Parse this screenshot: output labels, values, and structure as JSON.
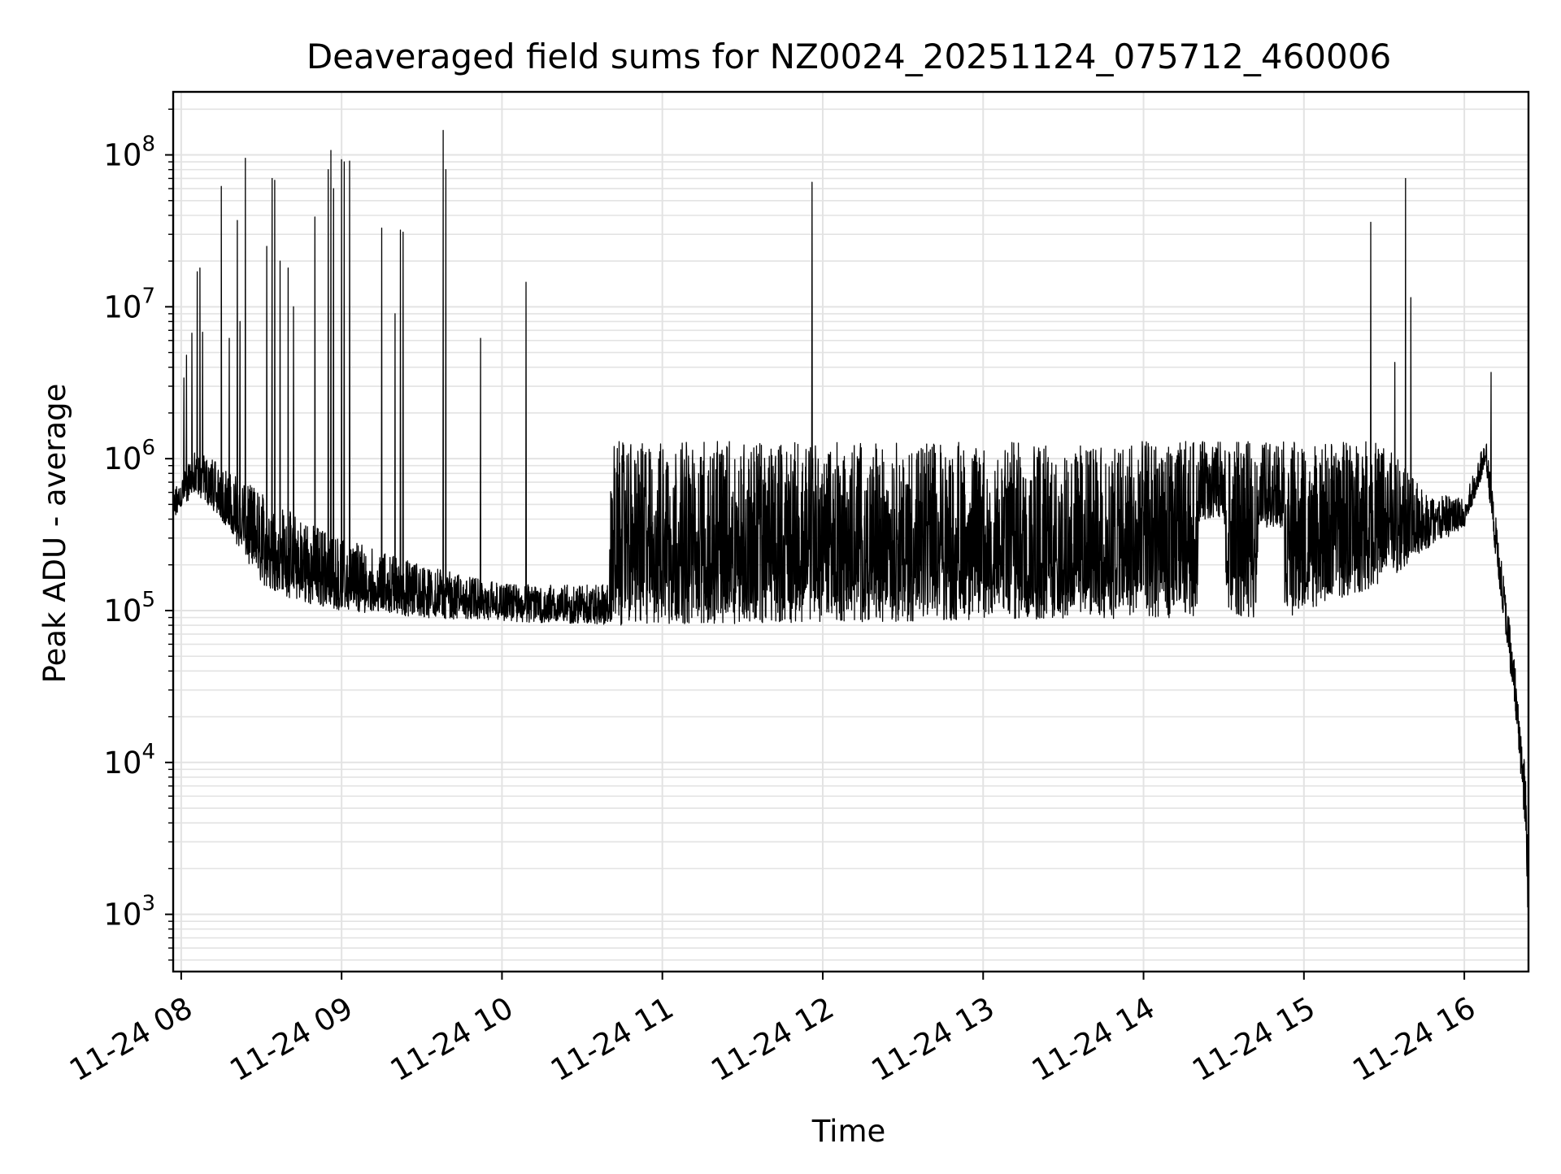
{
  "chart_data": {
    "type": "line",
    "title": "Deaveraged field sums for NZ0024_20251124_075712_460006",
    "xlabel": "Time",
    "ylabel": "Peak ADU - average",
    "yscale": "log",
    "grid": true,
    "legend": "none",
    "xlim": [
      "11-24 07:57",
      "11-24 16:24"
    ],
    "ylim": [
      420,
      260000000
    ],
    "x_ticks": [
      "11-24 08",
      "11-24 09",
      "11-24 10",
      "11-24 11",
      "11-24 12",
      "11-24 13",
      "11-24 14",
      "11-24 15",
      "11-24 16"
    ],
    "y_ticks": [
      {
        "base": "10",
        "exp": "3"
      },
      {
        "base": "10",
        "exp": "4"
      },
      {
        "base": "10",
        "exp": "5"
      },
      {
        "base": "10",
        "exp": "6"
      },
      {
        "base": "10",
        "exp": "7"
      },
      {
        "base": "10",
        "exp": "8"
      }
    ],
    "line_color": "#000000",
    "baseline_segments": [
      {
        "t": "11-24 07:57",
        "floor": 400000,
        "ceil": 600000
      },
      {
        "t": "11-24 08:05",
        "floor": 600000,
        "ceil": 1200000
      },
      {
        "t": "11-24 08:15",
        "floor": 400000,
        "ceil": 900000
      },
      {
        "t": "11-24 08:30",
        "floor": 150000,
        "ceil": 600000
      },
      {
        "t": "11-24 08:45",
        "floor": 110000,
        "ceil": 400000
      },
      {
        "t": "11-24 09:00",
        "floor": 100000,
        "ceil": 300000
      },
      {
        "t": "11-24 09:30",
        "floor": 90000,
        "ceil": 200000
      },
      {
        "t": "11-24 10:00",
        "floor": 85000,
        "ceil": 150000
      },
      {
        "t": "11-24 10:40",
        "floor": 80000,
        "ceil": 150000
      },
      {
        "t": "11-24 10:41",
        "floor": 80000,
        "ceil": 1300000
      },
      {
        "t": "11-24 14:20",
        "floor": 90000,
        "ceil": 1300000
      },
      {
        "t": "11-24 14:21",
        "floor": 400000,
        "ceil": 1300000
      },
      {
        "t": "11-24 14:30",
        "floor": 400000,
        "ceil": 1300000
      },
      {
        "t": "11-24 14:31",
        "floor": 90000,
        "ceil": 1300000
      },
      {
        "t": "11-24 14:42",
        "floor": 90000,
        "ceil": 1300000
      },
      {
        "t": "11-24 14:43",
        "floor": 350000,
        "ceil": 1300000
      },
      {
        "t": "11-24 14:52",
        "floor": 350000,
        "ceil": 1300000
      },
      {
        "t": "11-24 14:53",
        "floor": 90000,
        "ceil": 1300000
      },
      {
        "t": "11-24 15:30",
        "floor": 150000,
        "ceil": 1300000
      },
      {
        "t": "11-24 15:45",
        "floor": 250000,
        "ceil": 600000
      },
      {
        "t": "11-24 16:00",
        "floor": 350000,
        "ceil": 550000
      },
      {
        "t": "11-24 16:06",
        "floor": 700000,
        "ceil": 1100000
      },
      {
        "t": "11-24 16:08",
        "floor": 900000,
        "ceil": 1500000
      },
      {
        "t": "11-24 16:12",
        "floor": 200000,
        "ceil": 400000
      },
      {
        "t": "11-24 16:16",
        "floor": 60000,
        "ceil": 120000
      },
      {
        "t": "11-24 16:20",
        "floor": 15000,
        "ceil": 30000
      },
      {
        "t": "11-24 16:23",
        "floor": 3000,
        "ceil": 8000
      },
      {
        "t": "11-24 16:24",
        "floor": 700,
        "ceil": 1500
      }
    ],
    "spikes": [
      {
        "t": "11-24 08:01",
        "y": 3400000
      },
      {
        "t": "11-24 08:02",
        "y": 4800000
      },
      {
        "t": "11-24 08:04",
        "y": 6700000
      },
      {
        "t": "11-24 08:06",
        "y": 17000000
      },
      {
        "t": "11-24 08:07",
        "y": 18000000
      },
      {
        "t": "11-24 08:08",
        "y": 6800000
      },
      {
        "t": "11-24 08:15",
        "y": 62000000
      },
      {
        "t": "11-24 08:18",
        "y": 6200000
      },
      {
        "t": "11-24 08:21",
        "y": 37000000
      },
      {
        "t": "11-24 08:22",
        "y": 8000000
      },
      {
        "t": "11-24 08:24",
        "y": 95000000
      },
      {
        "t": "11-24 08:32",
        "y": 25000000
      },
      {
        "t": "11-24 08:34",
        "y": 70000000
      },
      {
        "t": "11-24 08:35",
        "y": 68000000
      },
      {
        "t": "11-24 08:37",
        "y": 20000000
      },
      {
        "t": "11-24 08:40",
        "y": 18000000
      },
      {
        "t": "11-24 08:42",
        "y": 10000000
      },
      {
        "t": "11-24 08:50",
        "y": 39000000
      },
      {
        "t": "11-24 08:55",
        "y": 80000000
      },
      {
        "t": "11-24 08:56",
        "y": 107000000
      },
      {
        "t": "11-24 08:57",
        "y": 60000000
      },
      {
        "t": "11-24 09:00",
        "y": 93000000
      },
      {
        "t": "11-24 09:01",
        "y": 90000000
      },
      {
        "t": "11-24 09:03",
        "y": 91000000
      },
      {
        "t": "11-24 09:15",
        "y": 33000000
      },
      {
        "t": "11-24 09:20",
        "y": 9000000
      },
      {
        "t": "11-24 09:22",
        "y": 32000000
      },
      {
        "t": "11-24 09:23",
        "y": 31000000
      },
      {
        "t": "11-24 09:38",
        "y": 145000000
      },
      {
        "t": "11-24 09:39",
        "y": 80000000
      },
      {
        "t": "11-24 09:52",
        "y": 6200000
      },
      {
        "t": "11-24 10:09",
        "y": 14500000
      },
      {
        "t": "11-24 11:56",
        "y": 66000000
      },
      {
        "t": "11-24 15:25",
        "y": 36000000
      },
      {
        "t": "11-24 15:34",
        "y": 4300000
      },
      {
        "t": "11-24 15:38",
        "y": 70000000
      },
      {
        "t": "11-24 15:40",
        "y": 11500000
      },
      {
        "t": "11-24 16:10",
        "y": 3700000
      }
    ]
  }
}
